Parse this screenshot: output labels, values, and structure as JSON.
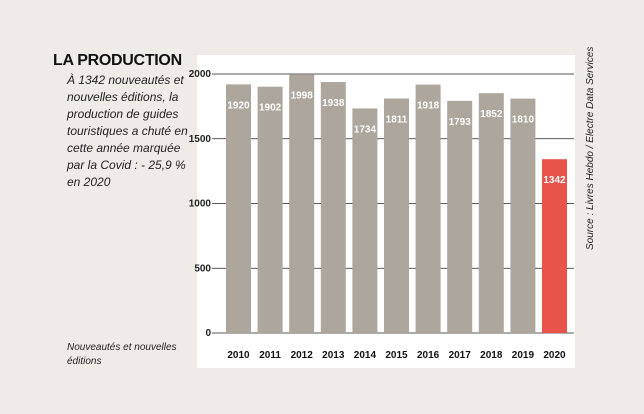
{
  "heading": "LA PRODUCTION",
  "intro": "À 1342 nouveautés et nouvelles éditions, la production de guides touristiques a chuté en cette année marquée par la Covid : - 25,9 % en 2020",
  "series_note": "Nouveautés et nouvelles éditions",
  "source": "Source : Livres Hebdo / Electre Data Services",
  "colors": {
    "bar": "#aca69d",
    "highlight": "#e8534a",
    "grid": "#222222",
    "label": "#ffffff"
  },
  "chart_data": {
    "type": "bar",
    "title": "LA PRODUCTION",
    "categories": [
      "2010",
      "2011",
      "2012",
      "2013",
      "2014",
      "2015",
      "2016",
      "2017",
      "2018",
      "2019",
      "2020"
    ],
    "values": [
      1920,
      1902,
      1998,
      1938,
      1734,
      1811,
      1918,
      1793,
      1852,
      1810,
      1342
    ],
    "value_labels": [
      "1920",
      "1902",
      "1998",
      "1938",
      "1734",
      "1811",
      "1918",
      "1793",
      "1852",
      "1810",
      "1342"
    ],
    "series": [
      {
        "name": "Nouveautés et nouvelles éditions",
        "values": [
          1920,
          1902,
          1998,
          1938,
          1734,
          1811,
          1918,
          1793,
          1852,
          1810,
          1342
        ]
      }
    ],
    "highlight_category": "2020",
    "yticks": [
      0,
      500,
      1000,
      1500,
      2000
    ],
    "ylim": [
      0,
      2000
    ],
    "xlabel": "",
    "ylabel": "",
    "grid": true,
    "legend": "none"
  }
}
